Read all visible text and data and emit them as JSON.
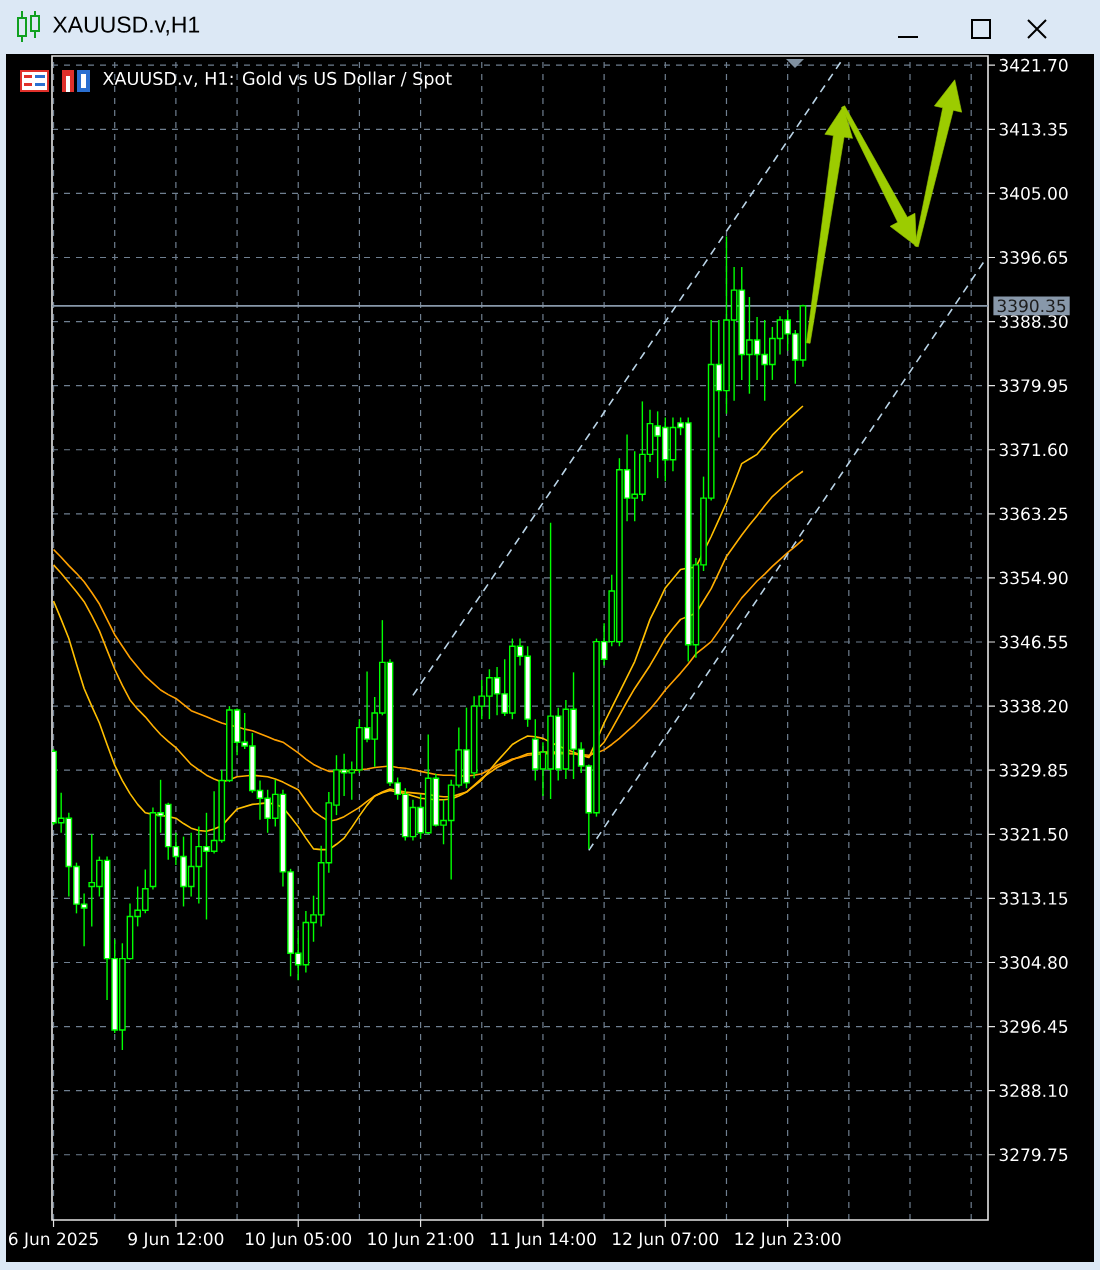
{
  "chart_data": {
    "type": "candlestick",
    "title": "XAUUSD.v,H1",
    "subtitle": "XAUUSD.v, H1:  Gold vs US Dollar / Spot",
    "categories": [
      "6 Jun 2025",
      null,
      null,
      null,
      null,
      null,
      null,
      null,
      null,
      null,
      null,
      null,
      null,
      null,
      null,
      null,
      "9 Jun 12:00",
      null,
      null,
      null,
      null,
      null,
      null,
      null,
      null,
      null,
      null,
      null,
      null,
      null,
      null,
      null,
      "10 Jun 05:00",
      null,
      null,
      null,
      null,
      null,
      null,
      null,
      null,
      null,
      null,
      null,
      null,
      null,
      null,
      null,
      "10 Jun 21:00",
      null,
      null,
      null,
      null,
      null,
      null,
      null,
      null,
      null,
      null,
      null,
      null,
      null,
      null,
      null,
      "11 Jun 14:00",
      null,
      null,
      null,
      null,
      null,
      null,
      null,
      null,
      null,
      null,
      null,
      null,
      null,
      null,
      null,
      "12 Jun 07:00",
      null,
      null,
      null,
      null,
      null,
      null,
      null,
      null,
      null,
      null,
      null,
      null,
      null,
      null,
      null,
      "12 Jun 23:00",
      null,
      null,
      null,
      null,
      null,
      null,
      null,
      null,
      null,
      null,
      null,
      null,
      null,
      null,
      null,
      null,
      null,
      null,
      null,
      null,
      null,
      null,
      null,
      null,
      null,
      null
    ],
    "ohlc": [
      [
        3332.3,
        3332.6,
        3322.7,
        3323.0
      ],
      [
        3323.0,
        3326.9,
        3321.7,
        3323.6
      ],
      [
        3323.6,
        3324.3,
        3313.4,
        3317.3
      ],
      [
        3317.3,
        3317.8,
        3311.2,
        3312.4
      ],
      [
        3312.4,
        3313.8,
        3306.9,
        3311.9
      ],
      [
        3314.7,
        3321.5,
        3309.5,
        3315.2
      ],
      [
        3314.7,
        3318.6,
        3313.4,
        3318.1
      ],
      [
        3318.1,
        3318.6,
        3299.9,
        3305.3
      ],
      [
        3305.3,
        3307.8,
        3295.6,
        3296.0
      ],
      [
        3296.0,
        3307.3,
        3293.4,
        3305.3
      ],
      [
        3305.3,
        3312.5,
        3305.2,
        3310.8
      ],
      [
        3310.8,
        3314.7,
        3309.5,
        3311.6
      ],
      [
        3311.6,
        3316.9,
        3311.2,
        3314.4
      ],
      [
        3314.7,
        3325.0,
        3314.3,
        3324.3
      ],
      [
        3324.3,
        3328.6,
        3321.7,
        3323.9
      ],
      [
        3325.4,
        3325.6,
        3318.2,
        3319.9
      ],
      [
        3319.9,
        3321.7,
        3317.5,
        3318.6
      ],
      [
        3318.6,
        3321.2,
        3312.1,
        3314.7
      ],
      [
        3314.7,
        3321.7,
        3313.4,
        3317.3
      ],
      [
        3317.3,
        3322.5,
        3312.5,
        3319.9
      ],
      [
        3319.9,
        3324.3,
        3310.4,
        3319.3
      ],
      [
        3319.3,
        3327.1,
        3319.0,
        3320.7
      ],
      [
        3320.7,
        3329.9,
        3320.4,
        3328.5
      ],
      [
        3328.5,
        3338.2,
        3328.3,
        3337.7
      ],
      [
        3337.7,
        3337.9,
        3331.8,
        3333.5
      ],
      [
        3333.5,
        3337.3,
        3332.6,
        3333.0
      ],
      [
        3333.0,
        3334.7,
        3326.9,
        3327.2
      ],
      [
        3327.2,
        3328.5,
        3323.4,
        3326.2
      ],
      [
        3326.2,
        3327.3,
        3321.7,
        3323.6
      ],
      [
        3323.6,
        3328.6,
        3322.5,
        3326.7
      ],
      [
        3326.7,
        3327.3,
        3314.7,
        3316.6
      ],
      [
        3316.6,
        3317.0,
        3303.0,
        3306.0
      ],
      [
        3306.0,
        3309.0,
        3302.5,
        3304.5
      ],
      [
        3304.5,
        3311.5,
        3303.5,
        3310.0
      ],
      [
        3310.0,
        3313.5,
        3307.5,
        3311.0
      ],
      [
        3311.0,
        3320.0,
        3309.5,
        3317.8
      ],
      [
        3317.8,
        3327.0,
        3316.5,
        3325.6
      ],
      [
        3325.3,
        3331.8,
        3324.0,
        3329.9
      ],
      [
        3329.9,
        3332.0,
        3326.5,
        3329.5
      ],
      [
        3329.5,
        3331.0,
        3326.0,
        3329.9
      ],
      [
        3329.9,
        3336.5,
        3329.5,
        3335.4
      ],
      [
        3335.4,
        3342.7,
        3333.5,
        3333.9
      ],
      [
        3333.9,
        3339.4,
        3330.3,
        3337.3
      ],
      [
        3337.3,
        3349.4,
        3337.0,
        3343.9
      ],
      [
        3343.9,
        3344.3,
        3327.8,
        3328.2
      ],
      [
        3328.2,
        3328.9,
        3326.0,
        3326.7
      ],
      [
        3326.7,
        3327.5,
        3320.7,
        3321.2
      ],
      [
        3321.2,
        3326.0,
        3320.7,
        3325.0
      ],
      [
        3325.0,
        3326.7,
        3320.9,
        3321.7
      ],
      [
        3321.7,
        3334.5,
        3321.5,
        3328.8
      ],
      [
        3328.8,
        3329.4,
        3322.5,
        3322.7
      ],
      [
        3322.7,
        3326.0,
        3320.2,
        3323.3
      ],
      [
        3323.3,
        3328.6,
        3315.6,
        3327.9
      ],
      [
        3327.9,
        3335.4,
        3327.6,
        3332.5
      ],
      [
        3332.5,
        3338.0,
        3327.5,
        3328.2
      ],
      [
        3329.5,
        3339.5,
        3328.8,
        3338.2
      ],
      [
        3338.2,
        3341.6,
        3336.5,
        3339.5
      ],
      [
        3339.5,
        3343.0,
        3336.5,
        3341.9
      ],
      [
        3341.9,
        3343.3,
        3337.0,
        3339.8
      ],
      [
        3339.8,
        3344.3,
        3336.9,
        3337.3
      ],
      [
        3337.3,
        3347.0,
        3336.5,
        3346.0
      ],
      [
        3346.0,
        3347.0,
        3343.5,
        3344.7
      ],
      [
        3344.7,
        3346.0,
        3335.5,
        3336.5
      ],
      [
        3333.9,
        3336.5,
        3328.5,
        3330.0
      ],
      [
        3330.0,
        3333.5,
        3326.5,
        3332.2
      ],
      [
        3330.0,
        3362.1,
        3326.1,
        3336.9
      ],
      [
        3336.9,
        3338.0,
        3328.5,
        3330.0
      ],
      [
        3330.0,
        3339.0,
        3328.7,
        3337.8
      ],
      [
        3337.8,
        3342.6,
        3328.7,
        3332.6
      ],
      [
        3332.6,
        3333.5,
        3329.5,
        3330.4
      ],
      [
        3330.4,
        3330.6,
        3319.6,
        3324.3
      ],
      [
        3324.3,
        3347.0,
        3323.8,
        3346.6
      ],
      [
        3346.6,
        3349.0,
        3343.5,
        3344.3
      ],
      [
        3346.6,
        3355.3,
        3346.0,
        3353.2
      ],
      [
        3346.6,
        3370.5,
        3346.0,
        3369.0
      ],
      [
        3369.0,
        3373.6,
        3362.3,
        3365.3
      ],
      [
        3365.3,
        3371.4,
        3362.3,
        3365.8
      ],
      [
        3365.8,
        3377.9,
        3364.9,
        3371.0
      ],
      [
        3371.0,
        3376.8,
        3370.0,
        3375.0
      ],
      [
        3374.7,
        3376.6,
        3367.9,
        3373.4
      ],
      [
        3374.5,
        3375.8,
        3367.5,
        3370.3
      ],
      [
        3370.3,
        3375.8,
        3368.8,
        3374.5
      ],
      [
        3375.1,
        3375.8,
        3373.5,
        3374.5
      ],
      [
        3375.1,
        3375.8,
        3344.0,
        3346.2
      ],
      [
        3346.2,
        3357.5,
        3344.5,
        3356.6
      ],
      [
        3356.6,
        3368.1,
        3355.8,
        3365.3
      ],
      [
        3365.3,
        3388.5,
        3365.0,
        3382.7
      ],
      [
        3382.7,
        3388.5,
        3373.2,
        3379.3
      ],
      [
        3379.3,
        3399.4,
        3376.3,
        3388.5
      ],
      [
        3388.5,
        3395.4,
        3378.0,
        3392.4
      ],
      [
        3392.4,
        3395.4,
        3380.7,
        3384.0
      ],
      [
        3384.0,
        3391.5,
        3378.9,
        3385.9
      ],
      [
        3385.9,
        3388.9,
        3380.7,
        3384.0
      ],
      [
        3384.0,
        3388.5,
        3378.0,
        3382.7
      ],
      [
        3382.7,
        3387.6,
        3380.7,
        3386.1
      ],
      [
        3386.1,
        3389.0,
        3384.0,
        3388.5
      ],
      [
        3388.5,
        3389.8,
        3384.5,
        3386.7
      ],
      [
        3386.7,
        3387.2,
        3380.2,
        3383.3
      ],
      [
        3383.3,
        3390.5,
        3382.4,
        3390.35
      ],
      null,
      null,
      null,
      null,
      null,
      null,
      null,
      null,
      null,
      null,
      null,
      null,
      null,
      null,
      null,
      null,
      null,
      null,
      null,
      null,
      null,
      null,
      null,
      null
    ],
    "color": "#00ff00",
    "colors": [
      "#ffffff",
      "#000000",
      "#ffffff",
      "#ffffff",
      "#ffffff",
      "#000000",
      "#000000",
      "#ffffff",
      "#ffffff",
      "#000000",
      "#000000",
      "#000000",
      "#000000",
      "#000000",
      "#ffffff",
      "#ffffff",
      "#ffffff",
      "#ffffff",
      "#000000",
      "#000000",
      "#ffffff",
      "#000000",
      "#000000",
      "#000000",
      "#ffffff",
      "#ffffff",
      "#ffffff",
      "#ffffff",
      "#ffffff",
      "#000000",
      "#ffffff",
      "#ffffff",
      "#ffffff",
      "#000000",
      "#000000",
      "#000000",
      "#000000",
      "#000000",
      "#ffffff",
      "#000000",
      "#000000",
      "#ffffff",
      "#000000",
      "#000000",
      "#ffffff",
      "#ffffff",
      "#ffffff",
      "#000000",
      "#ffffff",
      "#000000",
      "#ffffff",
      "#000000",
      "#000000",
      "#000000",
      "#ffffff",
      "#000000",
      "#000000",
      "#000000",
      "#ffffff",
      "#ffffff",
      "#000000",
      "#ffffff",
      "#ffffff",
      "#ffffff",
      "#000000",
      "#000000",
      "#ffffff",
      "#000000",
      "#ffffff",
      "#ffffff",
      "#ffffff",
      "#000000",
      "#ffffff",
      "#000000",
      "#000000",
      "#ffffff",
      "#000000",
      "#000000",
      "#000000",
      "#ffffff",
      "#ffffff",
      "#000000",
      "#ffffff",
      "#ffffff",
      "#000000",
      "#000000",
      "#000000",
      "#ffffff",
      "#000000",
      "#000000",
      "#ffffff",
      "#000000",
      "#ffffff",
      "#ffffff",
      "#000000",
      "#000000",
      "#ffffff",
      "#ffffff",
      "#000000",
      null,
      null,
      null,
      null,
      null,
      null,
      null,
      null,
      null,
      null,
      null,
      null,
      null,
      null,
      null,
      null,
      null,
      null,
      null,
      null,
      null,
      null,
      null,
      null
    ],
    "series": [
      {
        "type": "line",
        "color": "#ffc000",
        "values": [
          3351.9,
          3349.5,
          3347.0,
          3343.7,
          3340.5,
          3338.2,
          3336.0,
          3333.2,
          3330.5,
          3328.5,
          3326.8,
          3325.4,
          3324.3,
          3324.1,
          3324.0,
          3323.8,
          3323.6,
          3322.9,
          3322.3,
          3322.0,
          3321.9,
          3322.2,
          3322.6,
          3323.7,
          3324.8,
          3325.1,
          3325.4,
          3325.5,
          3325.6,
          3325.4,
          3325.0,
          3323.8,
          3322.5,
          3321.0,
          3319.6,
          3319.5,
          3319.5,
          3320.2,
          3321.0,
          3322.4,
          3323.9,
          3325.3,
          3326.5,
          3326.9,
          3327.2,
          3327.0,
          3326.8,
          3326.5,
          3326.2,
          3326.1,
          3326.0,
          3326.0,
          3326.1,
          3326.5,
          3327.0,
          3327.8,
          3328.6,
          3329.8,
          3331.0,
          3332.1,
          3333.2,
          3333.8,
          3334.3,
          3334.2,
          3334.0,
          3333.5,
          3333.0,
          3332.6,
          3332.2,
          3331.8,
          3331.5,
          3333.7,
          3336.0,
          3338.0,
          3340.0,
          3342.0,
          3344.0,
          3346.7,
          3349.5,
          3351.5,
          3353.6,
          3354.8,
          3356.0,
          3356.2,
          3356.3,
          3358.3,
          3360.3,
          3362.5,
          3364.7,
          3367.2,
          3369.8,
          3370.4,
          3371.0,
          3372.2,
          3373.5,
          3374.5,
          3375.5,
          3376.4,
          3377.3,
          null,
          null,
          null,
          null,
          null,
          null,
          null,
          null,
          null,
          null,
          null,
          null,
          null,
          null,
          null,
          null,
          null,
          null,
          null,
          null,
          null,
          null,
          null,
          null
        ]
      },
      {
        "type": "line",
        "color": "#ffb000",
        "values": [
          3356.6,
          3355.5,
          3354.3,
          3353.1,
          3351.8,
          3350.0,
          3348.0,
          3345.5,
          3343.0,
          3340.9,
          3339.0,
          3337.8,
          3336.8,
          3335.6,
          3334.5,
          3333.6,
          3332.8,
          3331.7,
          3330.6,
          3329.9,
          3329.2,
          3328.7,
          3328.3,
          3328.6,
          3329.0,
          3329.1,
          3329.2,
          3329.1,
          3329.0,
          3328.7,
          3328.3,
          3327.8,
          3327.3,
          3325.9,
          3324.5,
          3323.8,
          3323.2,
          3323.4,
          3323.8,
          3324.4,
          3325.0,
          3325.8,
          3326.5,
          3327.0,
          3327.4,
          3327.2,
          3327.0,
          3326.9,
          3326.8,
          3326.7,
          3326.5,
          3326.4,
          3326.4,
          3326.7,
          3327.0,
          3327.9,
          3328.8,
          3329.5,
          3330.2,
          3330.7,
          3331.2,
          3331.6,
          3332.0,
          3332.1,
          3332.2,
          3332.2,
          3332.2,
          3332.1,
          3332.0,
          3331.8,
          3331.6,
          3332.5,
          3333.5,
          3335.2,
          3337.0,
          3338.8,
          3340.5,
          3342.0,
          3343.5,
          3345.2,
          3347.0,
          3348.3,
          3349.5,
          3349.9,
          3350.3,
          3351.9,
          3353.5,
          3355.6,
          3357.7,
          3359.1,
          3360.5,
          3361.8,
          3363.0,
          3364.3,
          3365.5,
          3366.4,
          3367.3,
          3368.1,
          3368.8,
          null,
          null,
          null,
          null,
          null,
          null,
          null,
          null,
          null,
          null,
          null,
          null,
          null,
          null,
          null,
          null,
          null,
          null,
          null,
          null,
          null,
          null,
          null,
          null
        ]
      },
      {
        "type": "line",
        "color": "#ffa000",
        "values": [
          3358.6,
          3357.6,
          3356.5,
          3355.5,
          3354.4,
          3353.0,
          3351.5,
          3349.5,
          3347.5,
          3346.0,
          3344.5,
          3343.3,
          3342.1,
          3341.2,
          3340.3,
          3339.7,
          3339.2,
          3338.4,
          3337.6,
          3337.2,
          3336.8,
          3336.4,
          3336.0,
          3335.7,
          3335.5,
          3335.2,
          3335.0,
          3334.6,
          3334.2,
          3333.8,
          3333.5,
          3332.8,
          3332.1,
          3331.3,
          3330.6,
          3330.1,
          3329.7,
          3329.7,
          3329.7,
          3329.8,
          3329.9,
          3330.0,
          3330.2,
          3330.3,
          3330.4,
          3330.2,
          3330.1,
          3329.9,
          3329.7,
          3329.5,
          3329.3,
          3329.2,
          3329.2,
          3329.1,
          3329.1,
          3329.2,
          3329.4,
          3329.9,
          3330.5,
          3330.9,
          3331.3,
          3331.5,
          3331.8,
          3331.9,
          3332.0,
          3332.0,
          3332.0,
          3332.0,
          3332.0,
          3331.9,
          3331.8,
          3332.1,
          3332.5,
          3333.2,
          3334.0,
          3334.9,
          3335.8,
          3336.8,
          3337.8,
          3339.0,
          3340.3,
          3341.4,
          3342.5,
          3343.7,
          3345.0,
          3345.8,
          3346.6,
          3348.0,
          3349.5,
          3350.9,
          3352.3,
          3353.4,
          3354.5,
          3355.4,
          3356.4,
          3357.3,
          3358.2,
          3359.0,
          3359.9,
          null,
          null,
          null,
          null,
          null,
          null,
          null,
          null,
          null,
          null,
          null,
          null,
          null,
          null,
          null,
          null,
          null,
          null,
          null,
          null,
          null,
          null,
          null,
          null
        ]
      },
      {
        "type": "line",
        "color": "#b9d3e6",
        "line_style": "dashed",
        "values": [
          null,
          null,
          null,
          null,
          null,
          null,
          null,
          null,
          null,
          null,
          null,
          null,
          null,
          null,
          null,
          null,
          null,
          null,
          null,
          null,
          null,
          null,
          null,
          null,
          null,
          null,
          null,
          null,
          null,
          null,
          null,
          null,
          null,
          null,
          null,
          null,
          null,
          null,
          null,
          null,
          null,
          null,
          null,
          null,
          null,
          null,
          null,
          3339.6,
          null,
          null,
          null,
          null,
          null,
          null,
          null,
          null,
          null,
          null,
          null,
          null,
          null,
          null,
          null,
          null,
          null,
          null,
          null,
          null,
          null,
          null,
          null,
          null,
          null,
          null,
          null,
          null,
          null,
          null,
          null,
          null,
          null,
          null,
          null,
          null,
          null,
          null,
          null,
          null,
          null,
          null,
          null,
          null,
          null,
          null,
          null,
          null,
          null,
          null,
          null,
          null,
          null,
          null,
          null,
          3422.2,
          null,
          null,
          null,
          null,
          null,
          null,
          null,
          null,
          null,
          null,
          null,
          null,
          null,
          null,
          null,
          null,
          null,
          null,
          null
        ]
      },
      {
        "type": "line",
        "color": "#b9d3e6",
        "line_style": "dashed",
        "values": [
          null,
          null,
          null,
          null,
          null,
          null,
          null,
          null,
          null,
          null,
          null,
          null,
          null,
          null,
          null,
          null,
          null,
          null,
          null,
          null,
          null,
          null,
          null,
          null,
          null,
          null,
          null,
          null,
          null,
          null,
          null,
          null,
          null,
          null,
          null,
          null,
          null,
          null,
          null,
          null,
          null,
          null,
          null,
          null,
          null,
          null,
          null,
          null,
          null,
          null,
          null,
          null,
          null,
          null,
          null,
          null,
          null,
          null,
          null,
          null,
          null,
          null,
          null,
          null,
          null,
          null,
          null,
          null,
          null,
          null,
          3319.4,
          null,
          null,
          null,
          null,
          null,
          null,
          null,
          null,
          null,
          null,
          null,
          null,
          null,
          null,
          null,
          null,
          null,
          null,
          null,
          null,
          null,
          null,
          null,
          null,
          null,
          null,
          null,
          null,
          null,
          null,
          null,
          null,
          null,
          null,
          null,
          null,
          null,
          null,
          null,
          null,
          null,
          null,
          null,
          null,
          null,
          null,
          null,
          null,
          null,
          null,
          null,
          3396.6
        ]
      }
    ],
    "ylim": [
      3271.25,
      3422.9
    ],
    "yticks": [
      3279.75,
      {
        "value": 3288.1,
        "label": "3288.10"
      },
      3296.45,
      {
        "value": 3304.8,
        "label": "3304.80"
      },
      3313.15,
      {
        "value": 3321.5,
        "label": "3321.50"
      },
      3329.85,
      {
        "value": 3338.2,
        "label": "3338.20"
      },
      3346.55,
      {
        "value": 3354.9,
        "label": "3354.90"
      },
      3363.25,
      {
        "value": 3371.6,
        "label": "3371.60"
      },
      3379.95,
      {
        "value": 3388.3,
        "label": "3388.30"
      },
      3396.65,
      {
        "value": 3405.0,
        "label": "3405.00"
      },
      3413.35,
      {
        "value": 3421.7,
        "label": "3421.70"
      }
    ],
    "grid": true,
    "ref_lines": [
      {
        "axis": "y",
        "value": 3390.35,
        "label": "3390.35",
        "color": "#8898aa"
      }
    ]
  }
}
